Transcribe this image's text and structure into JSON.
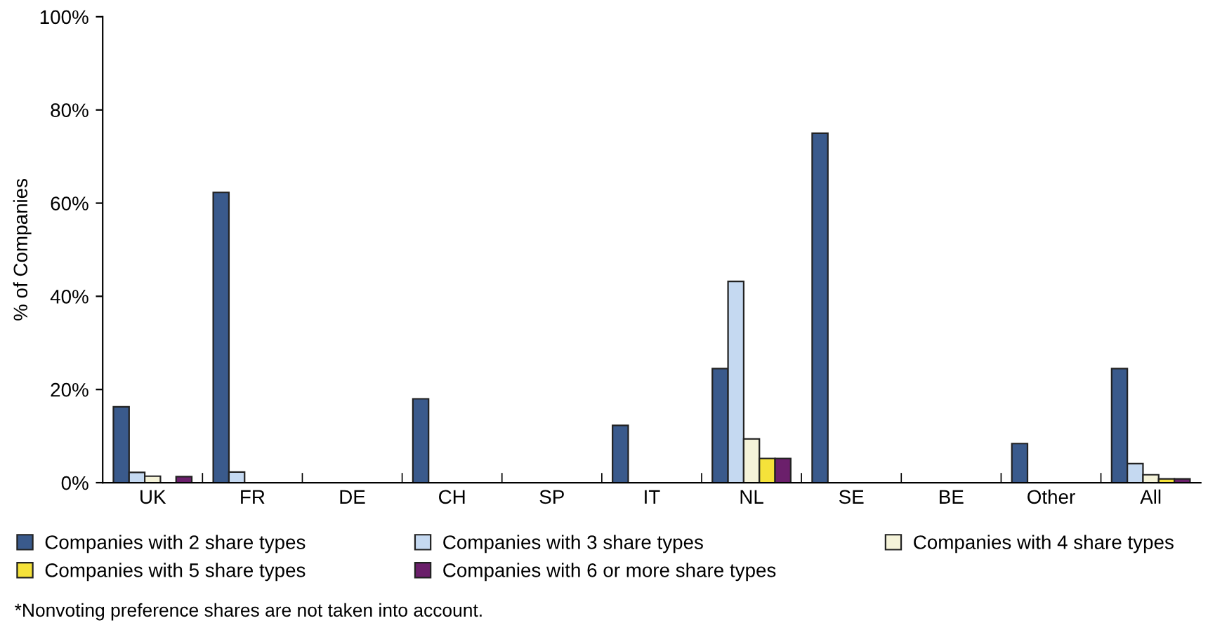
{
  "chart_data": {
    "type": "bar",
    "ylabel": "% of Companies",
    "categories": [
      "UK",
      "FR",
      "DE",
      "CH",
      "SP",
      "IT",
      "NL",
      "SE",
      "BE",
      "Other",
      "All"
    ],
    "series": [
      {
        "name": "Companies with 2 share types",
        "color": "#3a5a8c",
        "values": [
          16.3,
          62.3,
          null,
          18,
          null,
          12.3,
          24.5,
          75,
          null,
          8.4,
          24.5
        ]
      },
      {
        "name": "Companies with 3 share types",
        "color": "#c5d9f1",
        "values": [
          2.2,
          2.3,
          null,
          null,
          null,
          null,
          43.2,
          null,
          null,
          null,
          4.1
        ]
      },
      {
        "name": "Companies with 4 share types",
        "color": "#f5f3d9",
        "values": [
          1.4,
          null,
          null,
          null,
          null,
          null,
          9.4,
          null,
          null,
          null,
          1.7
        ]
      },
      {
        "name": "Companies with 5 share types",
        "color": "#f5e23a",
        "values": [
          null,
          null,
          null,
          null,
          null,
          null,
          5.2,
          null,
          null,
          null,
          0.8
        ]
      },
      {
        "name": "Companies with 6 or more share types",
        "color": "#6b1f6b",
        "values": [
          1.3,
          null,
          null,
          null,
          null,
          null,
          5.2,
          null,
          null,
          null,
          0.8
        ]
      }
    ],
    "ylim": [
      0,
      100
    ],
    "yticks": [
      {
        "value": 0,
        "label": "0%"
      },
      {
        "value": 20,
        "label": "20%"
      },
      {
        "value": 40,
        "label": "40%"
      },
      {
        "value": 60,
        "label": "60%"
      },
      {
        "value": 80,
        "label": "80%"
      },
      {
        "value": 100,
        "label": "100%"
      }
    ],
    "grid": false,
    "legend": "bottom",
    "annotations": [
      "*Nonvoting preference shares are not taken into account."
    ]
  }
}
